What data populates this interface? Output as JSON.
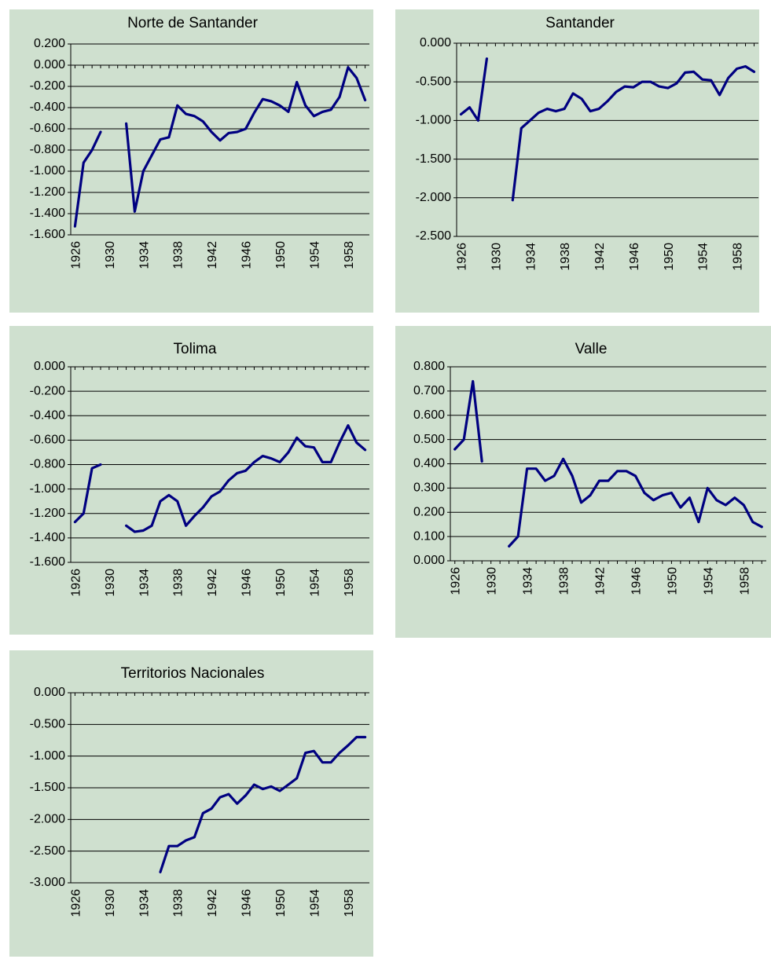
{
  "chart_data": [
    {
      "type": "line",
      "title": "Norte de Santander",
      "x": [
        1926,
        1927,
        1928,
        1929,
        1930,
        1931,
        1932,
        1933,
        1934,
        1935,
        1936,
        1937,
        1938,
        1939,
        1940,
        1941,
        1942,
        1943,
        1944,
        1945,
        1946,
        1947,
        1948,
        1949,
        1950,
        1951,
        1952,
        1953,
        1954,
        1955,
        1956,
        1957,
        1958,
        1959,
        1960
      ],
      "color": "#000080",
      "values": [
        -1.52,
        -0.92,
        -0.8,
        -0.63,
        null,
        null,
        -0.55,
        -1.38,
        -1.0,
        -0.85,
        -0.7,
        -0.68,
        -0.38,
        -0.46,
        -0.48,
        -0.53,
        -0.63,
        -0.71,
        -0.64,
        -0.63,
        -0.6,
        -0.45,
        -0.32,
        -0.34,
        -0.38,
        -0.44,
        -0.16,
        -0.38,
        -0.48,
        -0.44,
        -0.42,
        -0.3,
        -0.02,
        -0.12,
        -0.33
      ],
      "xlim": [
        1925.5,
        1960.5
      ],
      "xticks": [
        1926,
        1930,
        1934,
        1938,
        1942,
        1946,
        1950,
        1954,
        1958
      ],
      "ylim": [
        -1.6,
        0.2
      ],
      "yticks": [
        {
          "value": 0.2,
          "label": "0.200"
        },
        {
          "value": 0,
          "label": "0.000"
        },
        {
          "value": -0.2,
          "label": "-0.200"
        },
        {
          "value": -0.4,
          "label": "-0.400"
        },
        {
          "value": -0.6,
          "label": "-0.600"
        },
        {
          "value": -0.8,
          "label": "-0.800"
        },
        {
          "value": -1.0,
          "label": "-1.000"
        },
        {
          "value": -1.2,
          "label": "-1.200"
        },
        {
          "value": -1.4,
          "label": "-1.400"
        },
        {
          "value": -1.6,
          "label": "-1.600"
        }
      ],
      "grid": true
    },
    {
      "type": "line",
      "title": "Santander",
      "x": [
        1926,
        1927,
        1928,
        1929,
        1930,
        1931,
        1932,
        1933,
        1934,
        1935,
        1936,
        1937,
        1938,
        1939,
        1940,
        1941,
        1942,
        1943,
        1944,
        1945,
        1946,
        1947,
        1948,
        1949,
        1950,
        1951,
        1952,
        1953,
        1954,
        1955,
        1956,
        1957,
        1958,
        1959,
        1960
      ],
      "color": "#000080",
      "values": [
        -0.92,
        -0.83,
        -1.0,
        -0.2,
        null,
        null,
        -2.03,
        -1.1,
        -1.0,
        -0.9,
        -0.85,
        -0.88,
        -0.85,
        -0.65,
        -0.72,
        -0.88,
        -0.85,
        -0.75,
        -0.63,
        -0.56,
        -0.57,
        -0.5,
        -0.5,
        -0.56,
        -0.58,
        -0.52,
        -0.38,
        -0.37,
        -0.47,
        -0.48,
        -0.67,
        -0.45,
        -0.33,
        -0.3,
        -0.37
      ],
      "xlim": [
        1925.5,
        1960.5
      ],
      "xticks": [
        1926,
        1930,
        1934,
        1938,
        1942,
        1946,
        1950,
        1954,
        1958
      ],
      "ylim": [
        -2.5,
        0
      ],
      "yticks": [
        {
          "value": 0,
          "label": "0.000"
        },
        {
          "value": -0.5,
          "label": "-0.500"
        },
        {
          "value": -1.0,
          "label": "-1.000"
        },
        {
          "value": -1.5,
          "label": "-1.500"
        },
        {
          "value": -2.0,
          "label": "-2.000"
        },
        {
          "value": -2.5,
          "label": "-2.500"
        }
      ],
      "grid": true
    },
    {
      "type": "line",
      "title": "Tolima",
      "x": [
        1926,
        1927,
        1928,
        1929,
        1930,
        1931,
        1932,
        1933,
        1934,
        1935,
        1936,
        1937,
        1938,
        1939,
        1940,
        1941,
        1942,
        1943,
        1944,
        1945,
        1946,
        1947,
        1948,
        1949,
        1950,
        1951,
        1952,
        1953,
        1954,
        1955,
        1956,
        1957,
        1958,
        1959,
        1960
      ],
      "color": "#000080",
      "values": [
        -1.27,
        -1.2,
        -0.83,
        -0.8,
        null,
        null,
        -1.3,
        -1.35,
        -1.34,
        -1.3,
        -1.1,
        -1.05,
        -1.1,
        -1.3,
        -1.22,
        -1.15,
        -1.06,
        -1.02,
        -0.93,
        -0.87,
        -0.85,
        -0.78,
        -0.73,
        -0.75,
        -0.78,
        -0.7,
        -0.58,
        -0.65,
        -0.66,
        -0.78,
        -0.78,
        -0.62,
        -0.48,
        -0.62,
        -0.68
      ],
      "xlim": [
        1925.5,
        1960.5
      ],
      "xticks": [
        1926,
        1930,
        1934,
        1938,
        1942,
        1946,
        1950,
        1954,
        1958
      ],
      "ylim": [
        -1.6,
        0
      ],
      "yticks": [
        {
          "value": 0,
          "label": "0.000"
        },
        {
          "value": -0.2,
          "label": "-0.200"
        },
        {
          "value": -0.4,
          "label": "-0.400"
        },
        {
          "value": -0.6,
          "label": "-0.600"
        },
        {
          "value": -0.8,
          "label": "-0.800"
        },
        {
          "value": -1.0,
          "label": "-1.000"
        },
        {
          "value": -1.2,
          "label": "-1.200"
        },
        {
          "value": -1.4,
          "label": "-1.400"
        },
        {
          "value": -1.6,
          "label": "-1.600"
        }
      ],
      "grid": true
    },
    {
      "type": "line",
      "title": "Valle",
      "x": [
        1926,
        1927,
        1928,
        1929,
        1930,
        1931,
        1932,
        1933,
        1934,
        1935,
        1936,
        1937,
        1938,
        1939,
        1940,
        1941,
        1942,
        1943,
        1944,
        1945,
        1946,
        1947,
        1948,
        1949,
        1950,
        1951,
        1952,
        1953,
        1954,
        1955,
        1956,
        1957,
        1958,
        1959,
        1960
      ],
      "color": "#000080",
      "values": [
        0.46,
        0.5,
        0.74,
        0.41,
        null,
        null,
        0.06,
        0.1,
        0.38,
        0.38,
        0.33,
        0.35,
        0.42,
        0.35,
        0.24,
        0.27,
        0.33,
        0.33,
        0.37,
        0.37,
        0.35,
        0.28,
        0.25,
        0.27,
        0.28,
        0.22,
        0.26,
        0.16,
        0.3,
        0.25,
        0.23,
        0.26,
        0.23,
        0.16,
        0.14
      ],
      "xlim": [
        1925.5,
        1960.5
      ],
      "xticks": [
        1926,
        1930,
        1934,
        1938,
        1942,
        1946,
        1950,
        1954,
        1958
      ],
      "ylim": [
        0,
        0.8
      ],
      "yticks": [
        {
          "value": 0.8,
          "label": "0.800"
        },
        {
          "value": 0.7,
          "label": "0.700"
        },
        {
          "value": 0.6,
          "label": "0.600"
        },
        {
          "value": 0.5,
          "label": "0.500"
        },
        {
          "value": 0.4,
          "label": "0.400"
        },
        {
          "value": 0.3,
          "label": "0.300"
        },
        {
          "value": 0.2,
          "label": "0.200"
        },
        {
          "value": 0.1,
          "label": "0.100"
        },
        {
          "value": 0,
          "label": "0.000"
        }
      ],
      "grid": true
    },
    {
      "type": "line",
      "title": "Territorios Nacionales",
      "x": [
        1926,
        1927,
        1928,
        1929,
        1930,
        1931,
        1932,
        1933,
        1934,
        1935,
        1936,
        1937,
        1938,
        1939,
        1940,
        1941,
        1942,
        1943,
        1944,
        1945,
        1946,
        1947,
        1948,
        1949,
        1950,
        1951,
        1952,
        1953,
        1954,
        1955,
        1956,
        1957,
        1958,
        1959,
        1960
      ],
      "color": "#000080",
      "values": [
        null,
        null,
        null,
        null,
        null,
        null,
        null,
        null,
        null,
        null,
        -2.83,
        -2.42,
        -2.42,
        -2.33,
        -2.28,
        -1.9,
        -1.83,
        -1.65,
        -1.6,
        -1.75,
        -1.62,
        -1.45,
        -1.52,
        -1.48,
        -1.55,
        -1.45,
        -1.35,
        -0.95,
        -0.92,
        -1.1,
        -1.1,
        -0.95,
        -0.83,
        -0.7,
        -0.7
      ],
      "xlim": [
        1925.5,
        1960.5
      ],
      "xticks": [
        1926,
        1930,
        1934,
        1938,
        1942,
        1946,
        1950,
        1954,
        1958
      ],
      "ylim": [
        -3.0,
        0
      ],
      "yticks": [
        {
          "value": 0,
          "label": "0.000"
        },
        {
          "value": -0.5,
          "label": "-0.500"
        },
        {
          "value": -1.0,
          "label": "-1.000"
        },
        {
          "value": -1.5,
          "label": "-1.500"
        },
        {
          "value": -2.0,
          "label": "-2.000"
        },
        {
          "value": -2.5,
          "label": "-2.500"
        },
        {
          "value": -3.0,
          "label": "-3.000"
        }
      ],
      "grid": true
    }
  ]
}
